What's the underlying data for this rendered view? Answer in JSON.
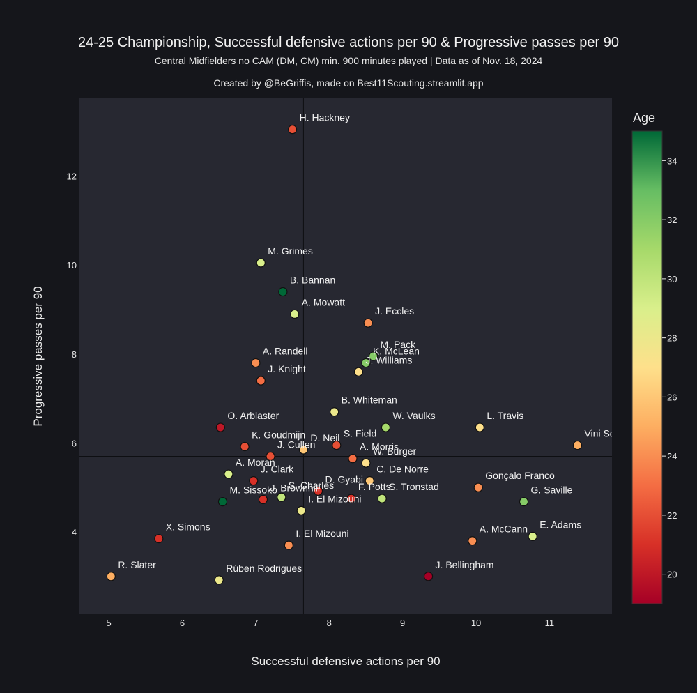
{
  "header": {
    "title": "24-25 Championship, Successful defensive actions per 90 & Progressive passes per 90",
    "subtitle": "Central Midfielders no CAM (DM, CM) min. 900 minutes played | Data as of Nov. 18, 2024",
    "credit": "Created by @BeGriffis, made on Best11Scouting.streamlit.app"
  },
  "chart_data": {
    "type": "scatter",
    "xlabel": "Successful defensive actions per 90",
    "ylabel": "Progressive passes per 90",
    "xlim": [
      4.6,
      11.85
    ],
    "ylim": [
      2.15,
      13.75
    ],
    "xticks": [
      5,
      6,
      7,
      8,
      9,
      10,
      11
    ],
    "yticks": [
      4,
      6,
      8,
      10,
      12
    ],
    "x_mean": 7.65,
    "y_mean": 5.7,
    "color_by": "Age",
    "colorbar": {
      "title": "Age",
      "min": 19,
      "max": 35,
      "ticks": [
        20,
        22,
        24,
        26,
        28,
        30,
        32,
        34
      ]
    },
    "points": [
      {
        "name": "H. Hackney",
        "x": 7.5,
        "y": 13.05,
        "age": 22
      },
      {
        "name": "M. Grimes",
        "x": 7.07,
        "y": 10.05,
        "age": 29
      },
      {
        "name": "B. Bannan",
        "x": 7.37,
        "y": 9.4,
        "age": 35
      },
      {
        "name": "A. Mowatt",
        "x": 7.53,
        "y": 8.9,
        "age": 29
      },
      {
        "name": "J. Eccles",
        "x": 8.53,
        "y": 8.7,
        "age": 24
      },
      {
        "name": "M. Pack",
        "x": 8.6,
        "y": 7.95,
        "age": 32
      },
      {
        "name": "K. McLean",
        "x": 8.5,
        "y": 7.8,
        "age": 32
      },
      {
        "name": "J. Williams",
        "x": 8.4,
        "y": 7.6,
        "age": 27
      },
      {
        "name": "A. Randell",
        "x": 7.0,
        "y": 7.8,
        "age": 24
      },
      {
        "name": "J. Knight",
        "x": 7.07,
        "y": 7.4,
        "age": 23
      },
      {
        "name": "B. Whiteman",
        "x": 8.07,
        "y": 6.7,
        "age": 28
      },
      {
        "name": "O. Arblaster",
        "x": 6.52,
        "y": 6.35,
        "age": 20
      },
      {
        "name": "W. Vaulks",
        "x": 8.77,
        "y": 6.35,
        "age": 31
      },
      {
        "name": "L. Travis",
        "x": 10.05,
        "y": 6.35,
        "age": 27
      },
      {
        "name": "Vini Souza",
        "x": 11.38,
        "y": 5.95,
        "age": 25
      },
      {
        "name": "K. Goudmijn",
        "x": 6.85,
        "y": 5.92,
        "age": 22
      },
      {
        "name": "D. Neil",
        "x": 7.65,
        "y": 5.85,
        "age": 26
      },
      {
        "name": "S. Field",
        "x": 8.1,
        "y": 5.95,
        "age": 22
      },
      {
        "name": "A. Morris",
        "x": 8.32,
        "y": 5.65,
        "age": 23
      },
      {
        "name": "W. Burger",
        "x": 8.5,
        "y": 5.55,
        "age": 27
      },
      {
        "name": "C. De Norre",
        "x": 8.55,
        "y": 5.15,
        "age": 26
      },
      {
        "name": "J. Cullen",
        "x": 7.2,
        "y": 5.7,
        "age": 22
      },
      {
        "name": "A. Moran",
        "x": 6.63,
        "y": 5.3,
        "age": 29
      },
      {
        "name": "J. Clark",
        "x": 6.97,
        "y": 5.15,
        "age": 21
      },
      {
        "name": "D. Gyabi",
        "x": 7.85,
        "y": 4.92,
        "age": 21
      },
      {
        "name": "S. Charles",
        "x": 7.35,
        "y": 4.78,
        "age": 30
      },
      {
        "name": "M. Sissoko",
        "x": 6.55,
        "y": 4.68,
        "age": 35
      },
      {
        "name": "J. Brownhill",
        "x": 7.1,
        "y": 4.73,
        "age": 21
      },
      {
        "name": "F. Potts",
        "x": 8.3,
        "y": 4.75,
        "age": 21
      },
      {
        "name": "S. Tronstad",
        "x": 8.72,
        "y": 4.75,
        "age": 30
      },
      {
        "name": "Gonçalo Franco",
        "x": 10.03,
        "y": 5.0,
        "age": 24
      },
      {
        "name": "G. Saville",
        "x": 10.65,
        "y": 4.68,
        "age": 32
      },
      {
        "name": "I. El Mizouni",
        "x": 7.62,
        "y": 4.48,
        "age": 28
      },
      {
        "name": "X. Simons",
        "x": 5.68,
        "y": 3.85,
        "age": 21
      },
      {
        "name": "A. McCann",
        "x": 9.95,
        "y": 3.8,
        "age": 24
      },
      {
        "name": "E. Adams",
        "x": 10.77,
        "y": 3.9,
        "age": 29
      },
      {
        "name": "I. El Mizouni",
        "x": 7.45,
        "y": 3.7,
        "age": 24
      },
      {
        "name": "R. Slater",
        "x": 5.03,
        "y": 3.0,
        "age": 25
      },
      {
        "name": "Rúben Rodrigues",
        "x": 6.5,
        "y": 2.92,
        "age": 28
      },
      {
        "name": "J. Bellingham",
        "x": 9.35,
        "y": 3.0,
        "age": 19
      }
    ]
  }
}
